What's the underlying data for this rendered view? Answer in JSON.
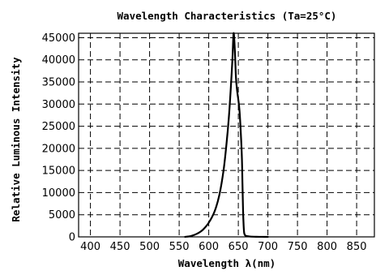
{
  "chart_data": {
    "type": "line",
    "title": "Wavelength Characteristics (Ta=25°C)",
    "xlabel": "Wavelength λ(nm)",
    "ylabel": "Relative Luminous Intensity",
    "xlim": [
      380,
      880
    ],
    "ylim": [
      0,
      46000
    ],
    "xticks": [
      400,
      450,
      500,
      550,
      600,
      650,
      700,
      750,
      800,
      850
    ],
    "yticks": [
      0,
      5000,
      10000,
      15000,
      20000,
      25000,
      30000,
      35000,
      40000,
      45000
    ],
    "grid": true,
    "series": [
      {
        "x": [
          560,
          570,
          580,
          590,
          600,
          610,
          618,
          625,
          630,
          634,
          637,
          640,
          642,
          644,
          646,
          648,
          650,
          652,
          654,
          656,
          657,
          658,
          659,
          660,
          662,
          666,
          670,
          680,
          690,
          700
        ],
        "values": [
          0,
          200,
          700,
          1600,
          3200,
          5800,
          9500,
          15000,
          21000,
          27000,
          33000,
          40000,
          46000,
          42500,
          36000,
          33000,
          31000,
          28500,
          24000,
          18000,
          12000,
          6000,
          2500,
          800,
          300,
          150,
          80,
          30,
          10,
          0
        ]
      }
    ]
  }
}
